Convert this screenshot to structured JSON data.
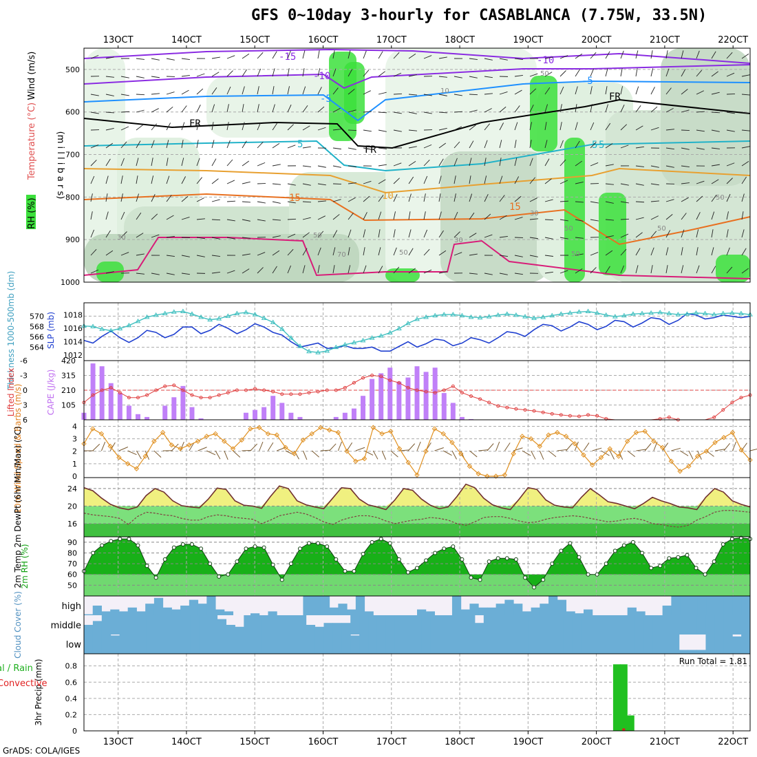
{
  "title": "GFS 0~10day 3-hourly for CASABLANCA (7.75W, 33.5N)",
  "credit": "GrADS: COLA/IGES",
  "colors": {
    "purple_contour": "#8a2be2",
    "blue_contour": "#1e90ff",
    "cyan_contour": "#20b2c8",
    "orange_contour": "#e8a030",
    "darkorange_contour": "#e87020",
    "magenta_contour": "#d81b78",
    "rh_green": "#3ce03c",
    "thickness": "#40c0c0",
    "slp": "#2040d0",
    "cape_bar": "#c080f8",
    "lifted_index": "#e04040",
    "wind10m": "#e09020",
    "temp_fill": "#f0f080",
    "dewpt_fill": "#50d050",
    "rh2m_fill": "#10a010",
    "cloud_fill": "#6baed6",
    "cloud_clear": "#f4f0f8",
    "precip_bar": "#20c020",
    "convective": "#e02020"
  },
  "chart_data": [
    {
      "type": "heatmap",
      "panel": "upper-air",
      "ylabel_lines": [
        "(m i l l i b a r s)"
      ],
      "legend_labels": [
        "RH (%)",
        "Temperature (°C)",
        "Wind (m/s)"
      ],
      "y_ticks": [
        "500",
        "600",
        "700",
        "800",
        "900",
        "1000"
      ],
      "ylim": [
        450,
        1000
      ],
      "contour_labels": [
        "-15",
        "-10",
        "-5",
        "5",
        "10",
        "15",
        "FR",
        "-10",
        "-5",
        "5",
        "15",
        "10",
        "FR",
        "FR"
      ],
      "rh_labels": [
        "30",
        "50",
        "70",
        "50",
        "30",
        "50",
        "50",
        "30",
        "50",
        "50",
        "10",
        "50"
      ]
    },
    {
      "type": "line",
      "panel": "thickness-slp",
      "ylabel_left": "Thickness 1000-500mb (dm)",
      "ylabel_right": "SLP (mb)",
      "left_ticks": [
        "570",
        "568",
        "566",
        "564"
      ],
      "right_ticks": [
        "1018",
        "1016",
        "1014",
        "1012"
      ],
      "series": [
        {
          "name": "Thickness",
          "values": [
            568.1,
            568.0,
            567.5,
            567.2,
            567.6,
            568.2,
            569.0,
            569.8,
            570.2,
            570.5,
            570.8,
            570.9,
            570.4,
            569.8,
            569.3,
            569.5,
            570.0,
            570.5,
            570.7,
            570.3,
            569.6,
            568.8,
            567.5,
            565.8,
            564.2,
            563.2,
            563.0,
            563.3,
            564.0,
            564.5,
            564.9,
            565.3,
            565.8,
            566.2,
            566.8,
            567.6,
            568.6,
            569.4,
            569.8,
            570.1,
            570.3,
            570.3,
            570.1,
            569.8,
            569.7,
            569.9,
            570.2,
            570.4,
            570.2,
            569.9,
            569.6,
            569.8,
            570.1,
            570.4,
            570.6,
            570.8,
            570.9,
            570.6,
            570.2,
            569.9,
            570.1,
            570.4,
            570.5,
            570.6,
            570.7,
            570.5,
            570.3,
            570.4,
            570.6,
            570.5,
            570.3,
            570.5,
            570.6,
            570.5,
            570.3
          ]
        },
        {
          "name": "SLP",
          "values": [
            1014.2,
            1013.8,
            1014.8,
            1015.6,
            1014.6,
            1013.9,
            1014.6,
            1015.7,
            1015.4,
            1014.6,
            1015.1,
            1016.2,
            1016.2,
            1015.2,
            1015.7,
            1016.6,
            1016.0,
            1015.2,
            1015.8,
            1016.7,
            1016.2,
            1015.4,
            1015.0,
            1014.0,
            1013.2,
            1013.5,
            1013.8,
            1013.0,
            1013.1,
            1013.4,
            1013.0,
            1013.0,
            1013.2,
            1012.6,
            1012.6,
            1013.3,
            1014.0,
            1013.2,
            1013.7,
            1014.4,
            1014.2,
            1013.4,
            1013.8,
            1014.6,
            1014.3,
            1013.8,
            1014.6,
            1015.5,
            1015.3,
            1014.8,
            1015.8,
            1016.6,
            1016.4,
            1015.6,
            1016.2,
            1017.0,
            1016.6,
            1015.8,
            1016.3,
            1017.2,
            1017.0,
            1016.2,
            1016.8,
            1017.6,
            1017.4,
            1016.6,
            1017.2,
            1018.2,
            1018.0,
            1017.4,
            1017.6,
            1018.0,
            1017.8,
            1017.6,
            1017.8
          ]
        }
      ]
    },
    {
      "type": "bar",
      "panel": "cape-li",
      "ylabel_left": "Lifted Index",
      "ylabel_right": "CAPE (J/kg)",
      "left_ticks": [
        "-6",
        "-3",
        "0",
        "3",
        "6"
      ],
      "right_ticks": [
        "420",
        "315",
        "210",
        "105"
      ],
      "series": [
        {
          "name": "CAPE",
          "values": [
            50,
            400,
            380,
            260,
            190,
            100,
            40,
            20,
            0,
            100,
            160,
            240,
            90,
            10,
            0,
            0,
            0,
            0,
            50,
            70,
            90,
            170,
            120,
            50,
            20,
            0,
            0,
            0,
            20,
            50,
            80,
            170,
            290,
            330,
            370,
            270,
            300,
            380,
            340,
            370,
            190,
            120,
            20,
            5,
            0,
            0,
            0,
            0,
            0,
            0,
            0,
            0,
            0,
            0,
            0,
            0,
            0,
            0,
            0,
            0,
            0,
            0,
            0,
            0,
            0,
            0,
            0,
            0,
            0,
            0,
            0,
            0,
            0,
            0,
            0
          ]
        },
        {
          "name": "Lifted Index",
          "values": [
            2.5,
            1.0,
            0.0,
            -0.5,
            0.5,
            1.5,
            1.5,
            1.0,
            0.0,
            -0.8,
            -1.0,
            0.0,
            1.0,
            1.5,
            1.5,
            1.0,
            0.5,
            0.0,
            0.0,
            -0.3,
            0.0,
            0.3,
            0.8,
            0.8,
            0.8,
            0.5,
            0.3,
            0.0,
            0.0,
            -0.5,
            -1.5,
            -2.5,
            -3.0,
            -2.8,
            -2.0,
            -1.5,
            -0.5,
            0.0,
            0.3,
            0.5,
            0.0,
            -0.8,
            0.5,
            1.2,
            1.8,
            2.5,
            3.2,
            3.5,
            3.8,
            4.0,
            4.2,
            4.5,
            4.8,
            5.0,
            5.2,
            5.3,
            5.0,
            5.2,
            5.8,
            6.2,
            6.6,
            7.0,
            6.8,
            6.5,
            5.8,
            5.5,
            6.0,
            6.6,
            7.0,
            6.8,
            5.5,
            4.0,
            2.5,
            1.5,
            1.0
          ]
        }
      ]
    },
    {
      "type": "line",
      "panel": "wind10m",
      "ylabel": "10m Wind Speed & Barbs (m/s)",
      "y_ticks": [
        "4",
        "3",
        "2",
        "1",
        "0"
      ],
      "series": [
        {
          "name": "10m Wind Speed",
          "values": [
            2.6,
            3.8,
            3.4,
            2.4,
            1.5,
            1.0,
            0.6,
            1.6,
            2.8,
            3.5,
            2.5,
            2.2,
            2.5,
            2.8,
            3.2,
            3.4,
            2.8,
            2.2,
            2.9,
            3.8,
            3.9,
            3.4,
            3.3,
            2.3,
            1.8,
            2.9,
            3.4,
            3.9,
            3.7,
            3.5,
            2.0,
            1.2,
            1.4,
            3.9,
            3.4,
            3.6,
            2.2,
            1.1,
            0.1,
            2.0,
            3.8,
            3.4,
            2.7,
            1.8,
            0.8,
            0.2,
            0.0,
            0.0,
            0.1,
            1.8,
            3.2,
            3.0,
            2.4,
            3.3,
            3.5,
            3.2,
            2.6,
            1.7,
            0.9,
            1.5,
            2.2,
            1.6,
            2.8,
            3.5,
            3.6,
            2.8,
            2.3,
            1.2,
            0.4,
            0.8,
            1.6,
            2.0,
            2.7,
            3.1,
            3.5,
            2.1,
            1.3
          ]
        }
      ]
    },
    {
      "type": "area",
      "panel": "temp2m",
      "ylabel": "2m Temp 2m DewPt (6hr Min/Max) (°C)",
      "y_ticks": [
        "24",
        "20",
        "16"
      ],
      "series": [
        {
          "name": "2m Temp",
          "values": [
            24.2,
            23.5,
            21.8,
            20.4,
            19.6,
            19.2,
            19.8,
            22.4,
            24.0,
            23.2,
            21.2,
            20.1,
            19.8,
            19.6,
            21.6,
            24.1,
            23.8,
            21.2,
            20.2,
            20.0,
            19.5,
            22.2,
            24.6,
            24.0,
            21.2,
            20.3,
            19.8,
            19.4,
            21.8,
            24.2,
            24.0,
            21.6,
            20.3,
            19.8,
            19.2,
            21.4,
            24.0,
            23.6,
            21.6,
            20.2,
            19.4,
            19.8,
            22.2,
            25.0,
            24.2,
            21.8,
            20.3,
            19.6,
            19.2,
            21.6,
            24.2,
            23.8,
            21.4,
            20.2,
            19.8,
            19.6,
            22.0,
            24.0,
            22.6,
            21.0,
            20.6,
            20.0,
            19.4,
            20.6,
            22.0,
            21.2,
            20.6,
            19.8,
            19.6,
            19.2,
            22.0,
            24.0,
            23.2,
            21.2,
            20.4,
            19.8
          ]
        },
        {
          "name": "2m DewPt",
          "values": [
            18.4,
            18.0,
            17.8,
            17.6,
            17.2,
            15.8,
            17.6,
            18.6,
            18.4,
            18.0,
            17.8,
            17.2,
            16.8,
            16.8,
            17.6,
            18.0,
            17.8,
            17.4,
            17.2,
            17.0,
            16.0,
            16.8,
            17.8,
            18.2,
            18.6,
            18.2,
            17.4,
            16.4,
            15.8,
            16.8,
            17.4,
            17.8,
            17.8,
            17.4,
            16.6,
            16.0,
            16.4,
            16.8,
            17.0,
            17.4,
            17.2,
            16.8,
            16.0,
            15.6,
            16.4,
            17.4,
            17.6,
            17.6,
            17.2,
            16.6,
            16.2,
            16.4,
            17.0,
            17.4,
            17.6,
            17.8,
            17.6,
            17.2,
            16.8,
            16.4,
            16.6,
            17.0,
            17.2,
            16.8,
            16.0,
            15.8,
            15.4,
            15.2,
            15.6,
            16.8,
            17.6,
            18.6,
            19.0,
            19.0,
            18.8,
            18.6
          ]
        }
      ]
    },
    {
      "type": "area",
      "panel": "rh2m",
      "ylabel": "2m RH (%)",
      "y_ticks": [
        "90",
        "80",
        "70",
        "60",
        "50"
      ],
      "series": [
        {
          "name": "2m RH",
          "values": [
            63,
            80,
            87,
            91,
            93,
            93,
            87,
            68,
            57,
            74,
            85,
            88,
            88,
            84,
            70,
            58,
            60,
            72,
            84,
            86,
            85,
            69,
            55,
            70,
            84,
            89,
            89,
            86,
            74,
            63,
            63,
            79,
            90,
            93,
            89,
            74,
            62,
            66,
            73,
            80,
            84,
            86,
            74,
            57,
            55,
            72,
            75,
            75,
            74,
            57,
            48,
            55,
            70,
            82,
            89,
            76,
            60,
            60,
            70,
            82,
            87,
            90,
            80,
            66,
            68,
            75,
            76,
            78,
            66,
            60,
            72,
            88,
            93,
            94,
            93
          ]
        }
      ]
    },
    {
      "type": "heatmap",
      "panel": "cloud",
      "ylabel": "Cloud Cover (%)",
      "rows": [
        "high",
        "middle",
        "low"
      ],
      "series": [
        {
          "name": "high",
          "values": [
            5,
            50,
            20,
            30,
            20,
            40,
            20,
            60,
            90,
            40,
            30,
            50,
            80,
            60,
            100,
            30,
            20,
            0,
            0,
            10,
            0,
            20,
            0,
            0,
            0,
            100,
            100,
            100,
            40,
            60,
            30,
            100,
            20,
            0,
            0,
            0,
            0,
            0,
            30,
            20,
            0,
            0,
            100,
            30,
            60,
            40,
            40,
            60,
            80,
            60,
            20,
            40,
            60,
            100,
            80,
            20,
            10,
            30,
            0,
            0,
            0,
            0,
            40,
            20,
            0,
            0,
            50,
            100,
            100,
            100,
            100,
            100,
            100,
            100,
            100,
            100
          ]
        },
        {
          "name": "middle",
          "values": [
            50,
            70,
            100,
            100,
            100,
            100,
            100,
            100,
            100,
            100,
            100,
            100,
            100,
            100,
            100,
            80,
            50,
            40,
            100,
            100,
            100,
            100,
            100,
            100,
            100,
            50,
            40,
            60,
            60,
            60,
            100,
            100,
            100,
            100,
            100,
            100,
            100,
            100,
            100,
            100,
            100,
            100,
            100,
            100,
            60,
            100,
            100,
            100,
            100,
            100,
            100,
            100,
            100,
            100,
            100,
            100,
            100,
            100,
            100,
            100,
            100,
            100,
            100,
            100,
            100,
            100,
            100,
            100,
            100,
            100,
            100,
            100,
            100,
            100,
            100
          ]
        },
        {
          "name": "low",
          "values": [
            100,
            100,
            100,
            95,
            100,
            100,
            100,
            100,
            100,
            100,
            100,
            100,
            100,
            100,
            100,
            100,
            100,
            100,
            100,
            100,
            100,
            100,
            100,
            100,
            100,
            100,
            100,
            100,
            100,
            100,
            95,
            100,
            100,
            100,
            100,
            100,
            100,
            100,
            100,
            100,
            100,
            100,
            100,
            100,
            100,
            100,
            100,
            100,
            100,
            100,
            100,
            100,
            100,
            100,
            100,
            100,
            100,
            100,
            100,
            100,
            100,
            100,
            100,
            100,
            100,
            100,
            100,
            20,
            20,
            20,
            100,
            100,
            100,
            90,
            100
          ]
        }
      ]
    },
    {
      "type": "bar",
      "panel": "precip",
      "ylabel": "3hr Precip (mm)",
      "side_label_lines": [
        "tal / Rain",
        "Convective"
      ],
      "run_total": "Run Total = 1.81",
      "y_ticks": [
        "0.8",
        "0.6",
        "0.4",
        "0.2",
        "0"
      ],
      "series": [
        {
          "name": "Total / Rain",
          "bars": [
            {
              "date": "20.3",
              "value": 0.82
            },
            {
              "date": "20.4",
              "value": 0.82
            },
            {
              "date": "20.5",
              "value": 0.19
            }
          ]
        },
        {
          "name": "Convective",
          "bars": [
            {
              "date": "20.4",
              "value": 0.03
            }
          ]
        }
      ]
    }
  ],
  "x_axis": {
    "ticks": [
      "13OCT",
      "14OCT",
      "15OCT",
      "16OCT",
      "17OCT",
      "18OCT",
      "19OCT",
      "20OCT",
      "21OCT",
      "22OCT"
    ],
    "start_day": 12.5,
    "end_day": 22.25
  }
}
